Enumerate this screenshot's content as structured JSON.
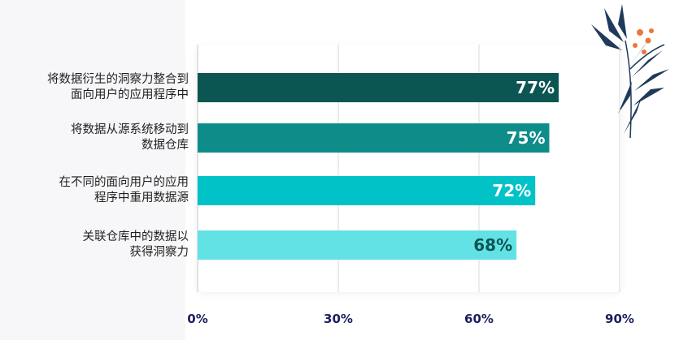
{
  "chart_data": {
    "type": "bar",
    "orientation": "horizontal",
    "categories": [
      "将数据衍生的洞察力整合到\n面向用户的应用程序中",
      "将数据从源系统移动到\n数据仓库",
      "在不同的面向用户的应用\n程序中重用数据源",
      "关联仓库中的数据以\n获得洞察力"
    ],
    "values": [
      77,
      75,
      72,
      68
    ],
    "value_labels": [
      "77%",
      "75%",
      "72%",
      "68%"
    ],
    "xticks": [
      0,
      30,
      60,
      90
    ],
    "xtick_labels": [
      "0%",
      "30%",
      "60%",
      "90%"
    ],
    "xlim": [
      0,
      90
    ],
    "grid": true,
    "colors": {
      "bars": [
        "#0b5552",
        "#0e8c89",
        "#00c2c7",
        "#63e2e6"
      ],
      "value_text": [
        "#ffffff",
        "#ffffff",
        "#ffffff",
        "#0b5552"
      ],
      "tick_text": "#1b1f5e",
      "grid": "#d9d9d9"
    }
  },
  "decoration": {
    "icon": "fern-leaves-with-orange-berries-icon",
    "colors": {
      "leaf": "#1f3a5a",
      "berry": "#e8783a"
    }
  }
}
